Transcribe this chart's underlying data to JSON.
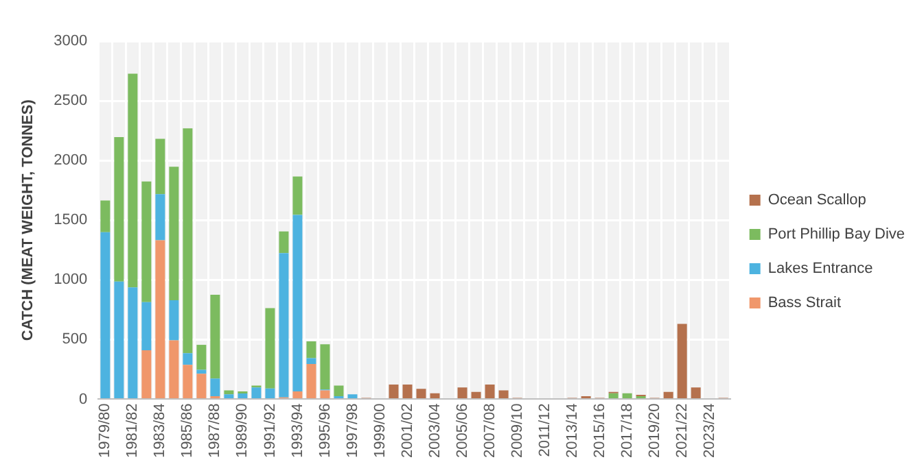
{
  "chart_data": {
    "type": "bar",
    "stacked": true,
    "ylabel": "CATCH (MEAT WEIGHT, TONNES)",
    "categories": [
      "1979/80",
      null,
      "1981/82",
      null,
      "1983/84",
      null,
      "1985/86",
      null,
      "1987/88",
      null,
      "1989/90",
      null,
      "1991/92",
      null,
      "1993/94",
      null,
      "1995/96",
      null,
      "1997/98",
      null,
      "1999/00",
      null,
      "2001/02",
      null,
      "2003/04",
      null,
      "2005/06",
      null,
      "2007/08",
      null,
      "2009/10",
      null,
      "2011/12",
      null,
      "2013/14",
      null,
      "2015/16",
      null,
      "2017/18",
      null,
      "2019/20",
      null,
      "2021/22",
      null,
      "2023/24",
      null
    ],
    "series": [
      {
        "name": "Bass Strait",
        "color": "#f0976b",
        "values": [
          0,
          0,
          0,
          411,
          1332,
          493,
          288,
          214,
          25,
          0,
          0,
          0,
          0,
          16,
          66,
          296,
          74,
          0,
          0,
          0,
          0,
          0,
          0,
          0,
          0,
          0,
          0,
          0,
          0,
          0,
          0,
          0,
          0,
          0,
          0,
          0,
          0,
          0,
          0,
          0,
          0,
          0,
          0,
          0,
          0,
          0
        ]
      },
      {
        "name": "Lakes Entrance",
        "color": "#4db3e0",
        "values": [
          1400,
          986,
          937,
          403,
          386,
          337,
          98,
          33,
          148,
          41,
          49,
          99,
          90,
          1209,
          1479,
          49,
          8,
          25,
          41,
          0,
          0,
          0,
          0,
          0,
          0,
          0,
          0,
          0,
          0,
          0,
          0,
          0,
          0,
          0,
          0,
          0,
          0,
          0,
          0,
          0,
          0,
          0,
          0,
          0,
          0,
          0
        ]
      },
      {
        "name": "Port Phillip Bay Dive",
        "color": "#7cbb5f",
        "values": [
          265,
          1210,
          1790,
          1011,
          464,
          1118,
          1883,
          209,
          702,
          33,
          17,
          16,
          674,
          181,
          321,
          140,
          378,
          90,
          0,
          0,
          0,
          0,
          0,
          0,
          0,
          0,
          0,
          0,
          0,
          0,
          0,
          0,
          0,
          0,
          0,
          0,
          0,
          50,
          50,
          25,
          0,
          0,
          0,
          0,
          0,
          0
        ]
      },
      {
        "name": "Ocean Scallop",
        "color": "#b5714d",
        "values": [
          0,
          0,
          0,
          0,
          0,
          0,
          0,
          0,
          0,
          0,
          0,
          0,
          0,
          0,
          0,
          0,
          0,
          0,
          0,
          12,
          0,
          124,
          124,
          87,
          50,
          0,
          99,
          62,
          124,
          74,
          12,
          0,
          0,
          0,
          12,
          25,
          12,
          12,
          0,
          12,
          12,
          62,
          632,
          99,
          0,
          12
        ]
      }
    ],
    "ylim": [
      0,
      3000
    ],
    "yticks": [
      0,
      500,
      1000,
      1500,
      2000,
      2500,
      3000
    ],
    "grid": true,
    "legend": "right"
  }
}
